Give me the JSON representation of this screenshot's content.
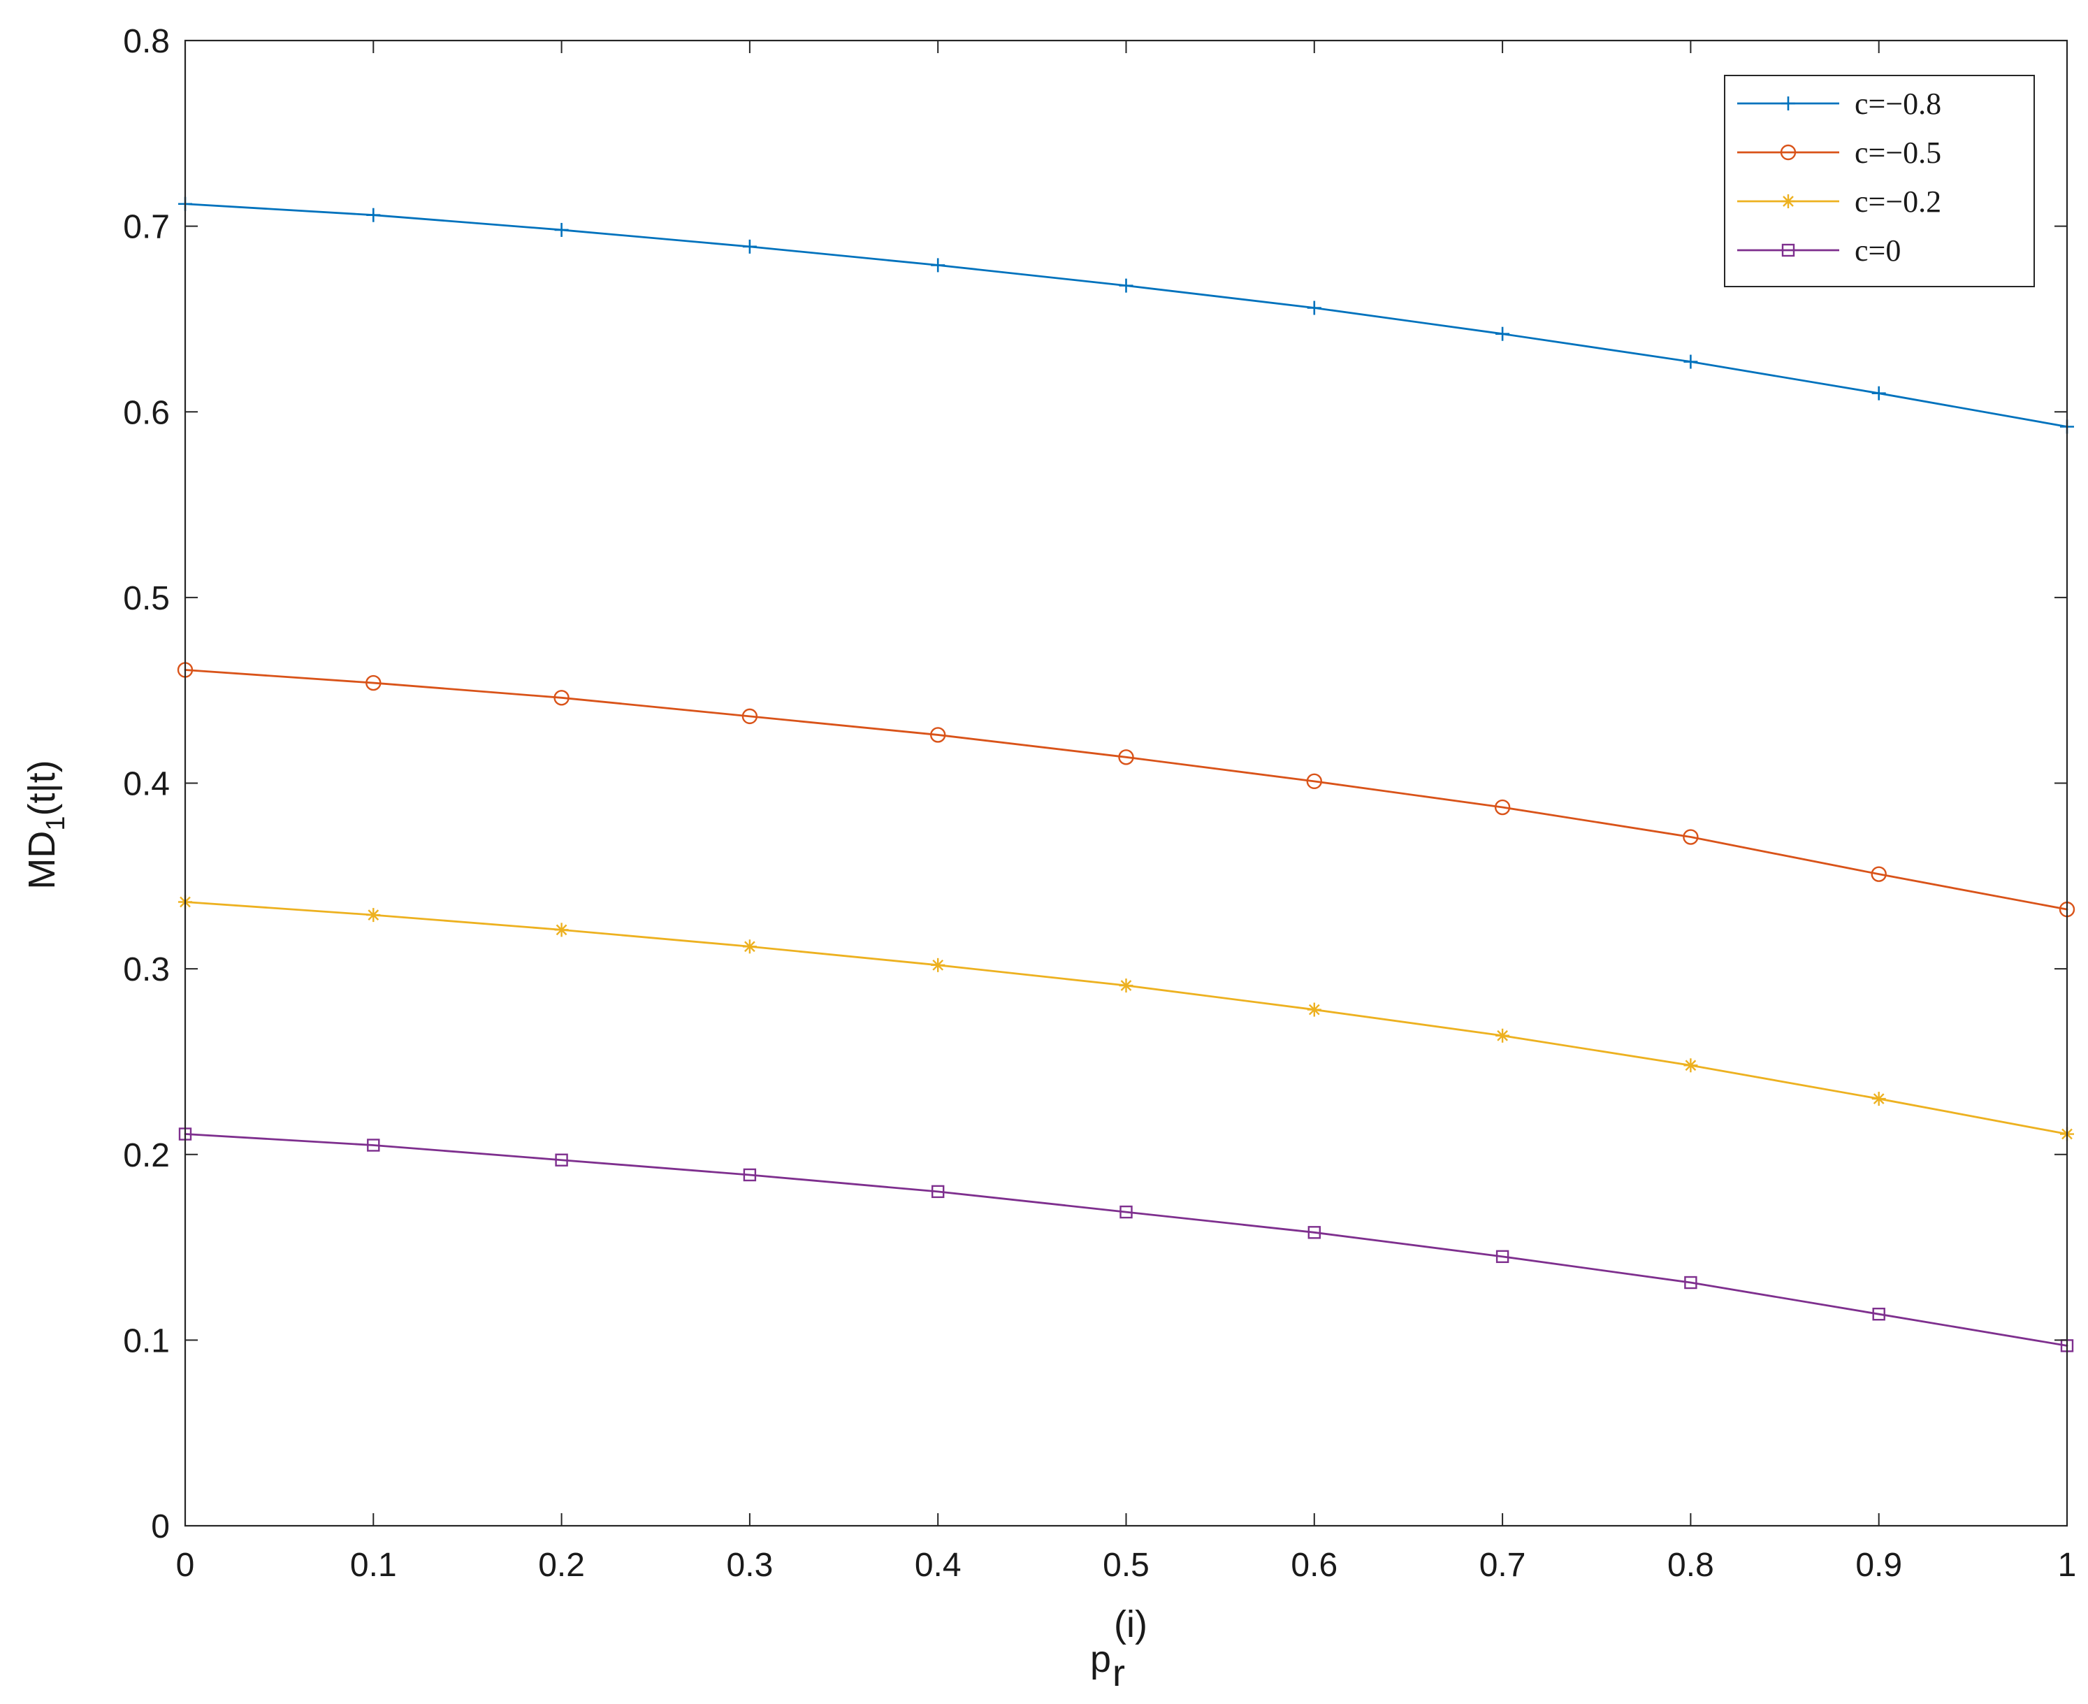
{
  "chart_data": {
    "type": "line",
    "title": "",
    "xlabel": {
      "base": "p",
      "subscript": "r",
      "superscript": "(i)"
    },
    "ylabel": {
      "base": "MD",
      "subscript": "1",
      "suffix": "(t|t)"
    },
    "xlim": [
      0,
      1
    ],
    "ylim": [
      0,
      0.8
    ],
    "x_ticks": [
      0,
      0.1,
      0.2,
      0.3,
      0.4,
      0.5,
      0.6,
      0.7,
      0.8,
      0.9,
      1
    ],
    "y_ticks": [
      0,
      0.1,
      0.2,
      0.3,
      0.4,
      0.5,
      0.6,
      0.7,
      0.8
    ],
    "x_tick_labels": [
      "0",
      "0.1",
      "0.2",
      "0.3",
      "0.4",
      "0.5",
      "0.6",
      "0.7",
      "0.8",
      "0.9",
      "1"
    ],
    "y_tick_labels": [
      "0",
      "0.1",
      "0.2",
      "0.3",
      "0.4",
      "0.5",
      "0.6",
      "0.7",
      "0.8"
    ],
    "grid": false,
    "legend_position": "top-right",
    "x": [
      0,
      0.1,
      0.2,
      0.3,
      0.4,
      0.5,
      0.6,
      0.7,
      0.8,
      0.9,
      1
    ],
    "series": [
      {
        "name": "c=−0.8",
        "color": "#0072BD",
        "marker": "plus",
        "values": [
          0.712,
          0.706,
          0.698,
          0.689,
          0.679,
          0.668,
          0.656,
          0.642,
          0.627,
          0.61,
          0.592
        ]
      },
      {
        "name": "c=−0.5",
        "color": "#D95319",
        "marker": "circle",
        "values": [
          0.461,
          0.454,
          0.446,
          0.436,
          0.426,
          0.414,
          0.401,
          0.387,
          0.371,
          0.351,
          0.332
        ]
      },
      {
        "name": "c=−0.2",
        "color": "#EDB120",
        "marker": "asterisk",
        "values": [
          0.336,
          0.329,
          0.321,
          0.312,
          0.302,
          0.291,
          0.278,
          0.264,
          0.248,
          0.23,
          0.211
        ]
      },
      {
        "name": "c=0",
        "color": "#7E2F8E",
        "marker": "square",
        "values": [
          0.211,
          0.205,
          0.197,
          0.189,
          0.18,
          0.169,
          0.158,
          0.145,
          0.131,
          0.114,
          0.097
        ]
      }
    ]
  }
}
